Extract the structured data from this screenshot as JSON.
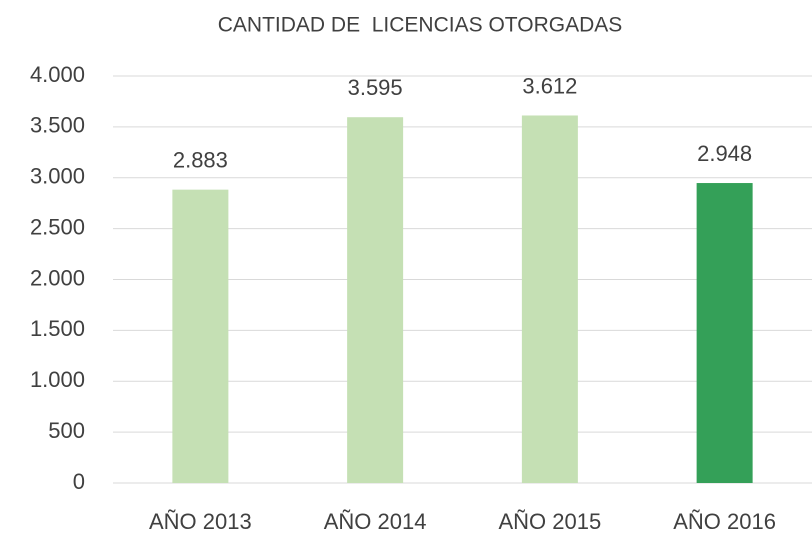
{
  "chart_data": {
    "type": "bar",
    "title": "CANTIDAD DE  LICENCIAS OTORGADAS",
    "categories": [
      "AÑO 2013",
      "AÑO 2014",
      "AÑO 2015",
      "AÑO 2016"
    ],
    "values": [
      2883,
      3595,
      3612,
      2948
    ],
    "value_labels": [
      "2.883",
      "3.595",
      "3.612",
      "2.948"
    ],
    "colors": [
      "#c5e0b4",
      "#c5e0b4",
      "#c5e0b4",
      "#34a058"
    ],
    "ylim": [
      0,
      4000
    ],
    "yticks": [
      0,
      500,
      {
        "value": 1000,
        "label": "1.000"
      },
      {
        "value": 1500,
        "label": "1.500"
      },
      {
        "value": 2000,
        "label": "2.000"
      },
      {
        "value": 2500,
        "label": "2.500"
      },
      {
        "value": 3000,
        "label": "3.000"
      },
      {
        "value": 3500,
        "label": "3.500"
      },
      {
        "value": 4000,
        "label": "4.000"
      }
    ],
    "grid": true
  }
}
